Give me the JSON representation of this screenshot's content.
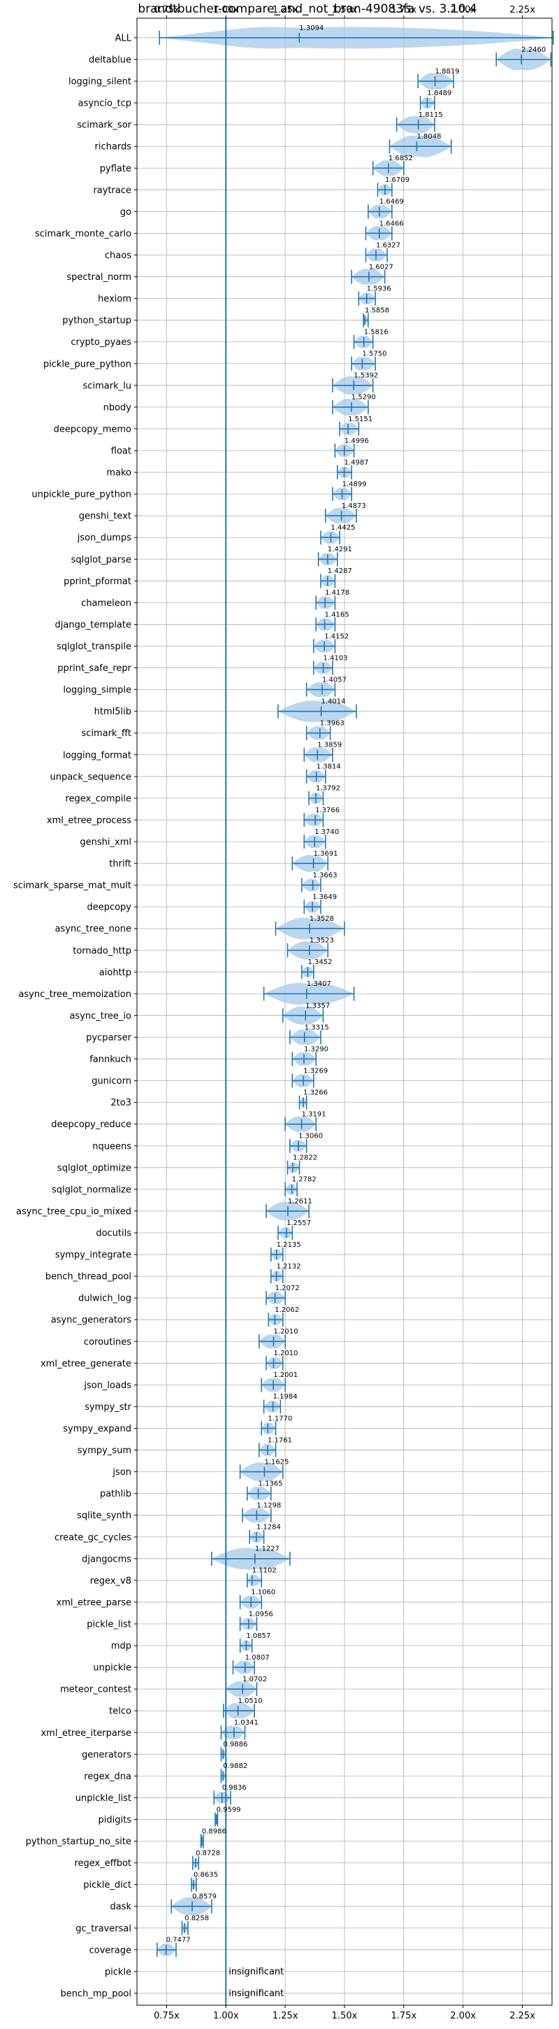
{
  "chart_data": {
    "type": "violin",
    "title": "brandtbucher-compare_and_not_bran-49083fa vs. 3.10.4",
    "xlabel": "",
    "ylabel": "",
    "xlim": [
      0.625,
      2.375
    ],
    "xticks": [
      0.75,
      1.0,
      1.25,
      1.5,
      1.75,
      2.0,
      2.25
    ],
    "xtick_labels": [
      "0.75x",
      "1.00x",
      "1.25x",
      "1.50x",
      "1.75x",
      "2.00x",
      "2.25x"
    ],
    "reference_line": 1.0,
    "grid": true,
    "colors": {
      "violin": "#a6c8e8",
      "line": "#1f77b4"
    },
    "insignificant_label": "insignificant",
    "benchmarks": [
      {
        "name": "ALL",
        "value": 1.3094,
        "label": "1.3094",
        "min": 0.72,
        "max": 2.38
      },
      {
        "name": "deltablue",
        "value": 2.246,
        "label": "2.2460",
        "min": 2.14,
        "max": 2.37
      },
      {
        "name": "logging_silent",
        "value": 1.8819,
        "label": "1.8819",
        "min": 1.81,
        "max": 1.96
      },
      {
        "name": "asyncio_tcp",
        "value": 1.8489,
        "label": "1.8489",
        "min": 1.82,
        "max": 1.88
      },
      {
        "name": "scimark_sor",
        "value": 1.8115,
        "label": "1.8115",
        "min": 1.72,
        "max": 1.88
      },
      {
        "name": "richards",
        "value": 1.8048,
        "label": "1.8048",
        "min": 1.69,
        "max": 1.95
      },
      {
        "name": "pyflate",
        "value": 1.6852,
        "label": "1.6852",
        "min": 1.62,
        "max": 1.75
      },
      {
        "name": "raytrace",
        "value": 1.6709,
        "label": "1.6709",
        "min": 1.64,
        "max": 1.7
      },
      {
        "name": "go",
        "value": 1.6469,
        "label": "1.6469",
        "min": 1.6,
        "max": 1.7
      },
      {
        "name": "scimark_monte_carlo",
        "value": 1.6466,
        "label": "1.6466",
        "min": 1.59,
        "max": 1.7
      },
      {
        "name": "chaos",
        "value": 1.6327,
        "label": "1.6327",
        "min": 1.59,
        "max": 1.68
      },
      {
        "name": "spectral_norm",
        "value": 1.6027,
        "label": "1.6027",
        "min": 1.53,
        "max": 1.67
      },
      {
        "name": "hexiom",
        "value": 1.5936,
        "label": "1.5936",
        "min": 1.56,
        "max": 1.63
      },
      {
        "name": "python_startup",
        "value": 1.5858,
        "label": "1.5858",
        "min": 1.58,
        "max": 1.6
      },
      {
        "name": "crypto_pyaes",
        "value": 1.5816,
        "label": "1.5816",
        "min": 1.54,
        "max": 1.62
      },
      {
        "name": "pickle_pure_python",
        "value": 1.575,
        "label": "1.5750",
        "min": 1.53,
        "max": 1.63
      },
      {
        "name": "scimark_lu",
        "value": 1.5392,
        "label": "1.5392",
        "min": 1.45,
        "max": 1.62
      },
      {
        "name": "nbody",
        "value": 1.529,
        "label": "1.5290",
        "min": 1.45,
        "max": 1.6
      },
      {
        "name": "deepcopy_memo",
        "value": 1.5151,
        "label": "1.5151",
        "min": 1.48,
        "max": 1.56
      },
      {
        "name": "float",
        "value": 1.4996,
        "label": "1.4996",
        "min": 1.46,
        "max": 1.54
      },
      {
        "name": "mako",
        "value": 1.4987,
        "label": "1.4987",
        "min": 1.47,
        "max": 1.53
      },
      {
        "name": "unpickle_pure_python",
        "value": 1.4899,
        "label": "1.4899",
        "min": 1.45,
        "max": 1.53
      },
      {
        "name": "genshi_text",
        "value": 1.4873,
        "label": "1.4873",
        "min": 1.42,
        "max": 1.55
      },
      {
        "name": "json_dumps",
        "value": 1.4425,
        "label": "1.4425",
        "min": 1.4,
        "max": 1.48
      },
      {
        "name": "sqlglot_parse",
        "value": 1.4291,
        "label": "1.4291",
        "min": 1.39,
        "max": 1.47
      },
      {
        "name": "pprint_pformat",
        "value": 1.4287,
        "label": "1.4287",
        "min": 1.4,
        "max": 1.46
      },
      {
        "name": "chameleon",
        "value": 1.4178,
        "label": "1.4178",
        "min": 1.38,
        "max": 1.46
      },
      {
        "name": "django_template",
        "value": 1.4165,
        "label": "1.4165",
        "min": 1.38,
        "max": 1.46
      },
      {
        "name": "sqlglot_transpile",
        "value": 1.4152,
        "label": "1.4152",
        "min": 1.37,
        "max": 1.46
      },
      {
        "name": "pprint_safe_repr",
        "value": 1.4103,
        "label": "1.4103",
        "min": 1.37,
        "max": 1.45
      },
      {
        "name": "logging_simple",
        "value": 1.4057,
        "label": "1.4057",
        "min": 1.34,
        "max": 1.46
      },
      {
        "name": "html5lib",
        "value": 1.4014,
        "label": "1.4014",
        "min": 1.22,
        "max": 1.55
      },
      {
        "name": "scimark_fft",
        "value": 1.3963,
        "label": "1.3963",
        "min": 1.34,
        "max": 1.44
      },
      {
        "name": "logging_format",
        "value": 1.3859,
        "label": "1.3859",
        "min": 1.33,
        "max": 1.45
      },
      {
        "name": "unpack_sequence",
        "value": 1.3814,
        "label": "1.3814",
        "min": 1.34,
        "max": 1.42
      },
      {
        "name": "regex_compile",
        "value": 1.3792,
        "label": "1.3792",
        "min": 1.35,
        "max": 1.41
      },
      {
        "name": "xml_etree_process",
        "value": 1.3766,
        "label": "1.3766",
        "min": 1.33,
        "max": 1.41
      },
      {
        "name": "genshi_xml",
        "value": 1.374,
        "label": "1.3740",
        "min": 1.33,
        "max": 1.42
      },
      {
        "name": "thrift",
        "value": 1.3691,
        "label": "1.3691",
        "min": 1.28,
        "max": 1.43
      },
      {
        "name": "scimark_sparse_mat_mult",
        "value": 1.3663,
        "label": "1.3663",
        "min": 1.32,
        "max": 1.4
      },
      {
        "name": "deepcopy",
        "value": 1.3649,
        "label": "1.3649",
        "min": 1.33,
        "max": 1.4
      },
      {
        "name": "async_tree_none",
        "value": 1.3528,
        "label": "1.3528",
        "min": 1.21,
        "max": 1.5
      },
      {
        "name": "tornado_http",
        "value": 1.3523,
        "label": "1.3523",
        "min": 1.26,
        "max": 1.43
      },
      {
        "name": "aiohttp",
        "value": 1.3452,
        "label": "1.3452",
        "min": 1.32,
        "max": 1.37
      },
      {
        "name": "async_tree_memoization",
        "value": 1.3407,
        "label": "1.3407",
        "min": 1.16,
        "max": 1.54
      },
      {
        "name": "async_tree_io",
        "value": 1.3357,
        "label": "1.3357",
        "min": 1.24,
        "max": 1.41
      },
      {
        "name": "pycparser",
        "value": 1.3315,
        "label": "1.3315",
        "min": 1.27,
        "max": 1.4
      },
      {
        "name": "fannkuch",
        "value": 1.329,
        "label": "1.3290",
        "min": 1.28,
        "max": 1.38
      },
      {
        "name": "gunicorn",
        "value": 1.3269,
        "label": "1.3269",
        "min": 1.28,
        "max": 1.37
      },
      {
        "name": "2to3",
        "value": 1.3266,
        "label": "1.3266",
        "min": 1.31,
        "max": 1.34
      },
      {
        "name": "deepcopy_reduce",
        "value": 1.3191,
        "label": "1.3191",
        "min": 1.25,
        "max": 1.38
      },
      {
        "name": "nqueens",
        "value": 1.306,
        "label": "1.3060",
        "min": 1.27,
        "max": 1.34
      },
      {
        "name": "sqlglot_optimize",
        "value": 1.2822,
        "label": "1.2822",
        "min": 1.26,
        "max": 1.31
      },
      {
        "name": "sqlglot_normalize",
        "value": 1.2782,
        "label": "1.2782",
        "min": 1.25,
        "max": 1.3
      },
      {
        "name": "async_tree_cpu_io_mixed",
        "value": 1.2611,
        "label": "1.2611",
        "min": 1.17,
        "max": 1.35
      },
      {
        "name": "docutils",
        "value": 1.2557,
        "label": "1.2557",
        "min": 1.22,
        "max": 1.28
      },
      {
        "name": "sympy_integrate",
        "value": 1.2135,
        "label": "1.2135",
        "min": 1.19,
        "max": 1.24
      },
      {
        "name": "bench_thread_pool",
        "value": 1.2132,
        "label": "1.2132",
        "min": 1.19,
        "max": 1.24
      },
      {
        "name": "dulwich_log",
        "value": 1.2072,
        "label": "1.2072",
        "min": 1.17,
        "max": 1.25
      },
      {
        "name": "async_generators",
        "value": 1.2062,
        "label": "1.2062",
        "min": 1.18,
        "max": 1.24
      },
      {
        "name": "coroutines",
        "value": 1.201,
        "label": "1.2010",
        "min": 1.14,
        "max": 1.25
      },
      {
        "name": "xml_etree_generate",
        "value": 1.201,
        "label": "1.2010",
        "min": 1.17,
        "max": 1.24
      },
      {
        "name": "json_loads",
        "value": 1.2001,
        "label": "1.2001",
        "min": 1.15,
        "max": 1.25
      },
      {
        "name": "sympy_str",
        "value": 1.1984,
        "label": "1.1984",
        "min": 1.16,
        "max": 1.23
      },
      {
        "name": "sympy_expand",
        "value": 1.177,
        "label": "1.1770",
        "min": 1.15,
        "max": 1.21
      },
      {
        "name": "sympy_sum",
        "value": 1.1761,
        "label": "1.1761",
        "min": 1.14,
        "max": 1.21
      },
      {
        "name": "json",
        "value": 1.1625,
        "label": "1.1625",
        "min": 1.06,
        "max": 1.24
      },
      {
        "name": "pathlib",
        "value": 1.1365,
        "label": "1.1365",
        "min": 1.09,
        "max": 1.19
      },
      {
        "name": "sqlite_synth",
        "value": 1.1298,
        "label": "1.1298",
        "min": 1.07,
        "max": 1.19
      },
      {
        "name": "create_gc_cycles",
        "value": 1.1284,
        "label": "1.1284",
        "min": 1.1,
        "max": 1.16
      },
      {
        "name": "djangocms",
        "value": 1.1227,
        "label": "1.1227",
        "min": 0.94,
        "max": 1.27
      },
      {
        "name": "regex_v8",
        "value": 1.1102,
        "label": "1.1102",
        "min": 1.09,
        "max": 1.15
      },
      {
        "name": "xml_etree_parse",
        "value": 1.106,
        "label": "1.1060",
        "min": 1.06,
        "max": 1.15
      },
      {
        "name": "pickle_list",
        "value": 1.0956,
        "label": "1.0956",
        "min": 1.06,
        "max": 1.13
      },
      {
        "name": "mdp",
        "value": 1.0857,
        "label": "1.0857",
        "min": 1.06,
        "max": 1.11
      },
      {
        "name": "unpickle",
        "value": 1.0807,
        "label": "1.0807",
        "min": 1.03,
        "max": 1.12
      },
      {
        "name": "meteor_contest",
        "value": 1.0702,
        "label": "1.0702",
        "min": 1.0,
        "max": 1.13
      },
      {
        "name": "telco",
        "value": 1.051,
        "label": "1.0510",
        "min": 0.99,
        "max": 1.12
      },
      {
        "name": "xml_etree_iterparse",
        "value": 1.0341,
        "label": "1.0341",
        "min": 0.98,
        "max": 1.08
      },
      {
        "name": "generators",
        "value": 0.9886,
        "label": "0.9886",
        "min": 0.98,
        "max": 1.0
      },
      {
        "name": "regex_dna",
        "value": 0.9882,
        "label": "0.9882",
        "min": 0.98,
        "max": 1.0
      },
      {
        "name": "unpickle_list",
        "value": 0.9836,
        "label": "0.9836",
        "min": 0.95,
        "max": 1.02
      },
      {
        "name": "pidigits",
        "value": 0.9599,
        "label": "0.9599",
        "min": 0.955,
        "max": 0.965
      },
      {
        "name": "python_startup_no_site",
        "value": 0.8986,
        "label": "0.8986",
        "min": 0.895,
        "max": 0.905
      },
      {
        "name": "regex_effbot",
        "value": 0.8728,
        "label": "0.8728",
        "min": 0.86,
        "max": 0.885
      },
      {
        "name": "pickle_dict",
        "value": 0.8635,
        "label": "0.8635",
        "min": 0.855,
        "max": 0.875
      },
      {
        "name": "dask",
        "value": 0.8579,
        "label": "0.8579",
        "min": 0.77,
        "max": 0.94
      },
      {
        "name": "gc_traversal",
        "value": 0.8258,
        "label": "0.8258",
        "min": 0.815,
        "max": 0.84
      },
      {
        "name": "coverage",
        "value": 0.7477,
        "label": "0.7477",
        "min": 0.71,
        "max": 0.79
      },
      {
        "name": "pickle",
        "value": null,
        "label": "insignificant",
        "min": null,
        "max": null
      },
      {
        "name": "bench_mp_pool",
        "value": null,
        "label": "insignificant",
        "min": null,
        "max": null
      }
    ]
  }
}
